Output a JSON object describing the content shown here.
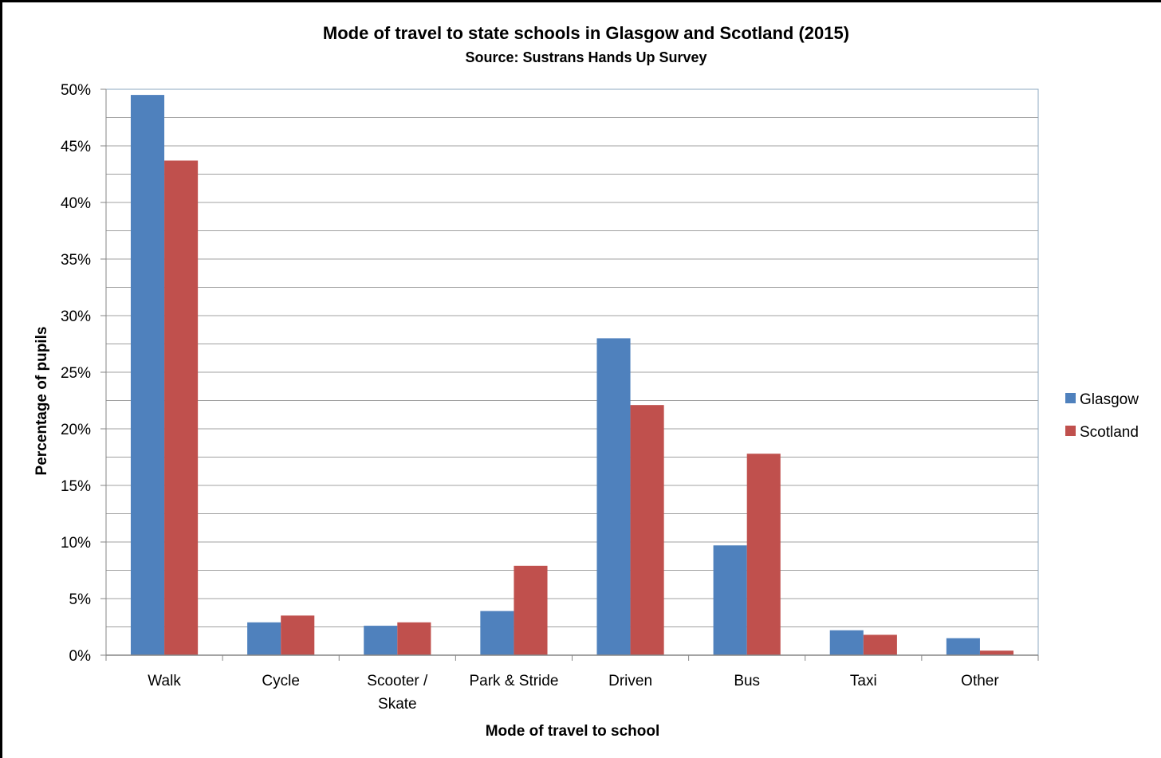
{
  "chart_data": {
    "type": "bar",
    "title": "Mode of travel to state schools in Glasgow and Scotland (2015)",
    "subtitle": "Source: Sustrans Hands Up Survey",
    "xlabel": "Mode of travel to school",
    "ylabel": "Percentage of pupils",
    "categories": [
      "Walk",
      "Cycle",
      "Scooter / Skate",
      "Park & Stride",
      "Driven",
      "Bus",
      "Taxi",
      "Other"
    ],
    "category_lines": [
      [
        "Walk"
      ],
      [
        "Cycle"
      ],
      [
        "Scooter /",
        "Skate"
      ],
      [
        "Park & Stride"
      ],
      [
        "Driven"
      ],
      [
        "Bus"
      ],
      [
        "Taxi"
      ],
      [
        "Other"
      ]
    ],
    "series": [
      {
        "name": "Glasgow",
        "color": "#4F81BD",
        "values": [
          49.5,
          2.9,
          2.6,
          3.9,
          28.0,
          9.7,
          2.2,
          1.5
        ]
      },
      {
        "name": "Scotland",
        "color": "#C0504D",
        "values": [
          43.7,
          3.5,
          2.9,
          7.9,
          22.1,
          17.8,
          1.8,
          0.4
        ]
      }
    ],
    "ylim": [
      0,
      50
    ],
    "ytick_labels": [
      "0%",
      "5%",
      "10%",
      "15%",
      "20%",
      "25%",
      "30%",
      "35%",
      "40%",
      "45%",
      "50%"
    ],
    "grid": true,
    "legend_position": "right"
  }
}
